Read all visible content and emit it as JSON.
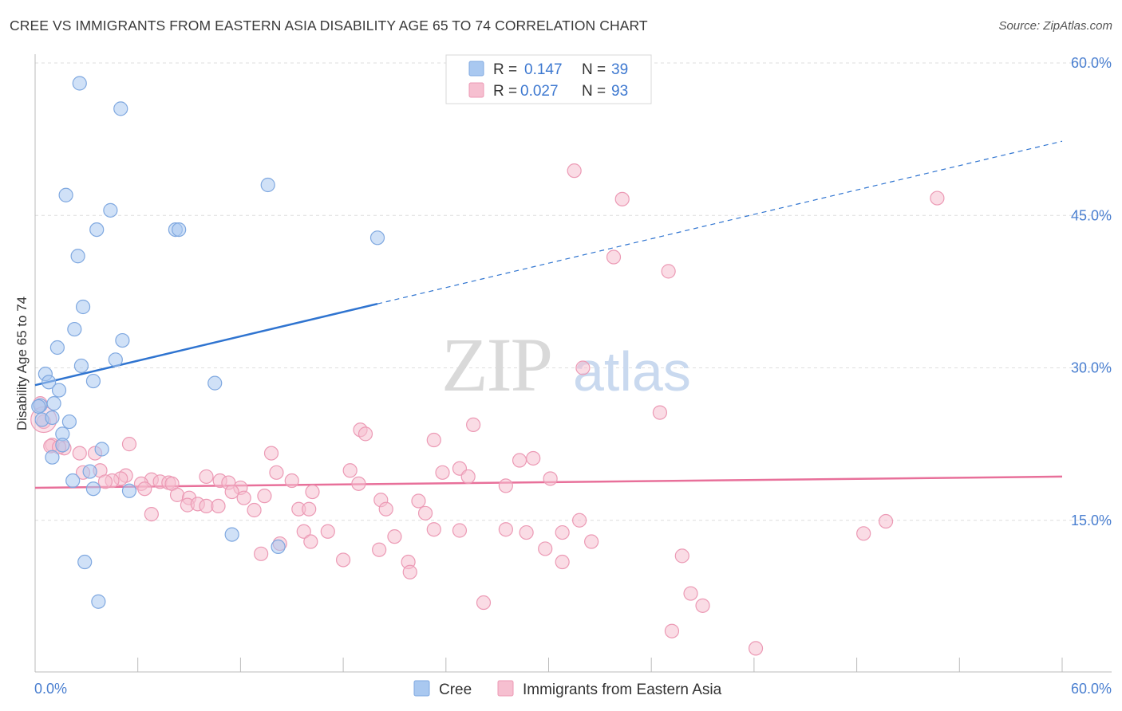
{
  "header": {
    "title": "CREE VS IMMIGRANTS FROM EASTERN ASIA DISABILITY AGE 65 TO 74 CORRELATION CHART",
    "source": "Source: ZipAtlas.com"
  },
  "watermark": {
    "part1": "ZIP",
    "part2": "atlas"
  },
  "legend": {
    "r_label": "R =",
    "n_label": "N =",
    "rows": [
      {
        "r": "0.147",
        "n": "39"
      },
      {
        "r": "0.027",
        "n": "93"
      }
    ]
  },
  "bottom_legend": [
    "Cree",
    "Immigrants from Eastern Asia"
  ],
  "colors": {
    "cree_fill": "#a9c8f0",
    "cree_stroke": "#7fa8e0",
    "cree_line": "#2f74d0",
    "imm_fill": "#f6bfd0",
    "imm_stroke": "#ec9ab5",
    "imm_line": "#e8709a",
    "tick": "#4a7fd0",
    "grid": "#dedede"
  },
  "chart_data": {
    "type": "scatter",
    "title": "CREE VS IMMIGRANTS FROM EASTERN ASIA DISABILITY AGE 65 TO 74 CORRELATION CHART",
    "xlabel": "",
    "ylabel": "Disability Age 65 to 74",
    "xlim": [
      0,
      60
    ],
    "ylim": [
      0,
      60
    ],
    "x_tick_labels": [
      "0.0%",
      "60.0%"
    ],
    "y_tick_labels": [
      "15.0%",
      "30.0%",
      "45.0%",
      "60.0%"
    ],
    "y_ticks": [
      15,
      30,
      45,
      60
    ],
    "grid": true,
    "legend_position": "top-center",
    "series": [
      {
        "name": "Cree",
        "r": 0.147,
        "n": 39,
        "points": [
          [
            2.6,
            58.0
          ],
          [
            5.0,
            55.5
          ],
          [
            1.8,
            47.0
          ],
          [
            4.4,
            45.5
          ],
          [
            3.6,
            43.6
          ],
          [
            8.2,
            43.6
          ],
          [
            8.4,
            43.6
          ],
          [
            13.6,
            48.0
          ],
          [
            20.0,
            42.8
          ],
          [
            2.5,
            41.0
          ],
          [
            2.8,
            36.0
          ],
          [
            2.3,
            33.8
          ],
          [
            1.3,
            32.0
          ],
          [
            5.1,
            32.7
          ],
          [
            4.7,
            30.8
          ],
          [
            2.7,
            30.2
          ],
          [
            0.6,
            29.4
          ],
          [
            0.8,
            28.6
          ],
          [
            1.4,
            27.8
          ],
          [
            3.4,
            28.7
          ],
          [
            10.5,
            28.5
          ],
          [
            1.1,
            26.5
          ],
          [
            0.3,
            26.3
          ],
          [
            0.4,
            24.9
          ],
          [
            1.0,
            25.1
          ],
          [
            2.0,
            24.7
          ],
          [
            1.6,
            23.5
          ],
          [
            1.6,
            22.4
          ],
          [
            3.9,
            22.0
          ],
          [
            1.0,
            21.2
          ],
          [
            3.2,
            19.8
          ],
          [
            2.2,
            18.9
          ],
          [
            3.4,
            18.1
          ],
          [
            5.5,
            17.9
          ],
          [
            11.5,
            13.6
          ],
          [
            14.2,
            12.4
          ],
          [
            2.9,
            10.9
          ],
          [
            3.7,
            7.0
          ],
          [
            0.2,
            26.2
          ]
        ],
        "trend": {
          "x0": 0,
          "y0": 28.3,
          "x1": 60,
          "y1": 52.3,
          "solid_to": 20
        }
      },
      {
        "name": "Immigrants from Eastern Asia",
        "r": 0.027,
        "n": 93,
        "points": [
          [
            31.5,
            49.4
          ],
          [
            34.3,
            46.6
          ],
          [
            52.7,
            46.7
          ],
          [
            33.8,
            40.9
          ],
          [
            37.0,
            39.5
          ],
          [
            32.0,
            30.0
          ],
          [
            36.5,
            25.6
          ],
          [
            25.6,
            24.4
          ],
          [
            19.0,
            23.9
          ],
          [
            19.3,
            23.5
          ],
          [
            23.3,
            22.9
          ],
          [
            5.5,
            22.5
          ],
          [
            1.0,
            22.4
          ],
          [
            1.7,
            22.1
          ],
          [
            3.5,
            21.6
          ],
          [
            2.6,
            21.6
          ],
          [
            13.8,
            21.6
          ],
          [
            29.1,
            21.1
          ],
          [
            28.3,
            20.9
          ],
          [
            24.8,
            20.1
          ],
          [
            18.4,
            19.9
          ],
          [
            23.8,
            19.7
          ],
          [
            14.1,
            19.7
          ],
          [
            3.8,
            19.9
          ],
          [
            2.8,
            19.7
          ],
          [
            5.3,
            19.4
          ],
          [
            25.3,
            19.3
          ],
          [
            30.1,
            19.1
          ],
          [
            10.0,
            19.3
          ],
          [
            5.0,
            19.1
          ],
          [
            4.5,
            18.9
          ],
          [
            6.8,
            19.0
          ],
          [
            4.1,
            18.8
          ],
          [
            7.3,
            18.8
          ],
          [
            15.0,
            18.9
          ],
          [
            10.8,
            18.9
          ],
          [
            11.3,
            18.7
          ],
          [
            7.8,
            18.7
          ],
          [
            8.0,
            18.6
          ],
          [
            18.9,
            18.6
          ],
          [
            6.2,
            18.6
          ],
          [
            27.5,
            18.4
          ],
          [
            12.0,
            18.2
          ],
          [
            6.4,
            18.1
          ],
          [
            11.5,
            17.8
          ],
          [
            16.2,
            17.8
          ],
          [
            13.4,
            17.4
          ],
          [
            8.3,
            17.5
          ],
          [
            12.2,
            17.2
          ],
          [
            9.0,
            17.2
          ],
          [
            20.2,
            17.0
          ],
          [
            22.4,
            16.9
          ],
          [
            8.9,
            16.5
          ],
          [
            9.5,
            16.6
          ],
          [
            10.0,
            16.4
          ],
          [
            10.7,
            16.4
          ],
          [
            15.4,
            16.1
          ],
          [
            16.0,
            16.1
          ],
          [
            20.5,
            16.1
          ],
          [
            12.8,
            16.0
          ],
          [
            22.8,
            15.7
          ],
          [
            6.8,
            15.6
          ],
          [
            31.8,
            15.0
          ],
          [
            49.7,
            14.9
          ],
          [
            17.1,
            13.9
          ],
          [
            15.7,
            13.9
          ],
          [
            23.3,
            14.1
          ],
          [
            24.8,
            14.0
          ],
          [
            27.5,
            14.1
          ],
          [
            30.8,
            13.8
          ],
          [
            28.7,
            13.8
          ],
          [
            48.4,
            13.7
          ],
          [
            21.0,
            13.4
          ],
          [
            32.5,
            12.9
          ],
          [
            14.3,
            12.7
          ],
          [
            16.1,
            12.9
          ],
          [
            20.1,
            12.1
          ],
          [
            29.8,
            12.2
          ],
          [
            13.2,
            11.7
          ],
          [
            37.8,
            11.5
          ],
          [
            18.0,
            11.1
          ],
          [
            21.8,
            10.9
          ],
          [
            30.8,
            10.9
          ],
          [
            21.9,
            9.9
          ],
          [
            26.2,
            6.9
          ],
          [
            38.3,
            7.8
          ],
          [
            39.0,
            6.6
          ],
          [
            37.2,
            4.1
          ],
          [
            42.1,
            2.4
          ],
          [
            0.5,
            24.7
          ],
          [
            0.3,
            26.5
          ],
          [
            0.9,
            22.3
          ],
          [
            1.4,
            22.2
          ]
        ],
        "trend": {
          "x0": 0,
          "y0": 18.2,
          "x1": 60,
          "y1": 19.3
        }
      }
    ]
  }
}
